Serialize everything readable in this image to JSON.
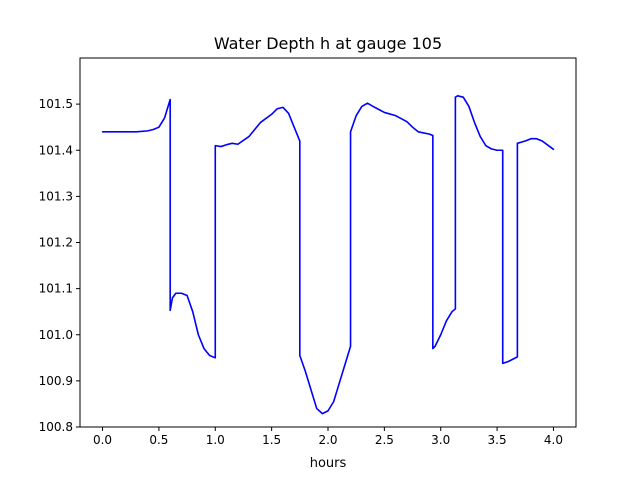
{
  "chart_data": {
    "type": "line",
    "title": "Water Depth h at gauge 105",
    "xlabel": "hours",
    "ylabel": "",
    "xlim": [
      -0.2,
      4.2
    ],
    "ylim": [
      100.8,
      101.6
    ],
    "grid": false,
    "xticks": [
      "0.0",
      "0.5",
      "1.0",
      "1.5",
      "2.0",
      "2.5",
      "3.0",
      "3.5",
      "4.0"
    ],
    "xtick_values": [
      0.0,
      0.5,
      1.0,
      1.5,
      2.0,
      2.5,
      3.0,
      3.5,
      4.0
    ],
    "yticks": [
      "100.8",
      "100.9",
      "101.0",
      "101.1",
      "101.2",
      "101.3",
      "101.4",
      "101.5"
    ],
    "ytick_values": [
      100.8,
      100.9,
      101.0,
      101.1,
      101.2,
      101.3,
      101.4,
      101.5
    ],
    "series": [
      {
        "color": "#0000ff",
        "x": [
          0.0,
          0.1,
          0.2,
          0.3,
          0.4,
          0.45,
          0.5,
          0.55,
          0.6,
          0.6,
          0.62,
          0.65,
          0.7,
          0.75,
          0.8,
          0.85,
          0.9,
          0.95,
          1.0,
          1.0,
          1.05,
          1.1,
          1.15,
          1.2,
          1.3,
          1.4,
          1.5,
          1.55,
          1.6,
          1.65,
          1.7,
          1.75,
          1.75,
          1.8,
          1.85,
          1.9,
          1.95,
          2.0,
          2.05,
          2.1,
          2.15,
          2.2,
          2.2,
          2.25,
          2.3,
          2.35,
          2.4,
          2.5,
          2.6,
          2.7,
          2.75,
          2.8,
          2.9,
          2.93,
          2.93,
          2.95,
          3.0,
          3.05,
          3.1,
          3.13,
          3.13,
          3.15,
          3.2,
          3.25,
          3.3,
          3.35,
          3.4,
          3.45,
          3.5,
          3.55,
          3.55,
          3.6,
          3.68,
          3.68,
          3.75,
          3.8,
          3.85,
          3.9,
          4.0
        ],
        "y": [
          101.44,
          101.44,
          101.44,
          101.44,
          101.442,
          101.445,
          101.45,
          101.47,
          101.51,
          101.053,
          101.08,
          101.09,
          101.09,
          101.085,
          101.05,
          101.0,
          100.97,
          100.955,
          100.95,
          101.41,
          101.408,
          101.412,
          101.415,
          101.413,
          101.43,
          101.46,
          101.478,
          101.49,
          101.493,
          101.48,
          101.45,
          101.42,
          100.955,
          100.92,
          100.88,
          100.84,
          100.829,
          100.835,
          100.855,
          100.895,
          100.935,
          100.975,
          101.44,
          101.475,
          101.495,
          101.502,
          101.495,
          101.482,
          101.475,
          101.462,
          101.45,
          101.44,
          101.435,
          101.432,
          100.97,
          100.975,
          101.0,
          101.03,
          101.05,
          101.056,
          101.515,
          101.518,
          101.515,
          101.495,
          101.46,
          101.43,
          101.41,
          101.403,
          101.4,
          101.4,
          100.938,
          100.942,
          100.952,
          101.415,
          101.42,
          101.425,
          101.425,
          101.42,
          101.402
        ]
      }
    ]
  }
}
